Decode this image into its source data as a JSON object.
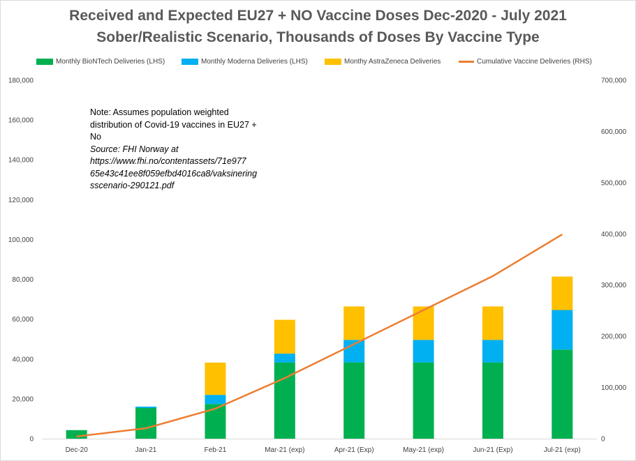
{
  "chart_data": {
    "type": "bar",
    "title": "Received and Expected EU27 + NO Vaccine Doses Dec-2020 - July 2021",
    "subtitle": "Sober/Realistic Scenario, Thousands of Doses By Vaccine Type",
    "categories": [
      "Dec-20",
      "Jan-21",
      "Feb-21",
      "Mar-21 (exp)",
      "Apr-21 (Exp)",
      "May-21 (exp)",
      "Jun-21 (Exp)",
      "Jul-21 (exp)"
    ],
    "series": [
      {
        "name": "Monthly BioNTech Deliveries (LHS)",
        "type": "bar",
        "axis": "left",
        "color": "#00b050",
        "values": [
          4300,
          15400,
          17400,
          38300,
          38300,
          38300,
          38300,
          44700
        ]
      },
      {
        "name": "Monthly Moderna Deliveries (LHS)",
        "type": "bar",
        "axis": "left",
        "color": "#00b0f0",
        "values": [
          0,
          700,
          4600,
          4400,
          11300,
          11300,
          11300,
          19900
        ]
      },
      {
        "name": "Monthy AstraZeneca Deliveries",
        "type": "bar",
        "axis": "left",
        "color": "#ffc000",
        "values": [
          0,
          0,
          16200,
          17000,
          16800,
          16800,
          16800,
          16800
        ]
      },
      {
        "name": "Cumulative Vaccine Deliveries (RHS)",
        "type": "line",
        "axis": "right",
        "color": "#ed7d31",
        "values": [
          4300,
          20400,
          58600,
          118300,
          184700,
          251100,
          317500,
          398900
        ]
      }
    ],
    "y_left": {
      "ylim": [
        0,
        180000
      ],
      "ticks": [
        "0",
        "20,000",
        "40,000",
        "60,000",
        "80,000",
        "100,000",
        "120,000",
        "140,000",
        "160,000",
        "180,000"
      ],
      "step": 20000
    },
    "y_right": {
      "ylim": [
        0,
        700000
      ],
      "ticks": [
        "0",
        "100,000",
        "200,000",
        "300,000",
        "400,000",
        "500,000",
        "600,000",
        "700,000"
      ],
      "step": 100000
    },
    "grid": false,
    "legend": "top"
  },
  "note": {
    "lines": [
      "Note: Assumes population weighted",
      "distribution of Covid-19 vaccines in EU27 +",
      "No"
    ],
    "source_lines": [
      "Source: FHI Norway at",
      "https://www.fhi.no/contentassets/71e977",
      "65e43c41ee8f059efbd4016ca8/vaksinering",
      "sscenario-290121.pdf"
    ]
  }
}
